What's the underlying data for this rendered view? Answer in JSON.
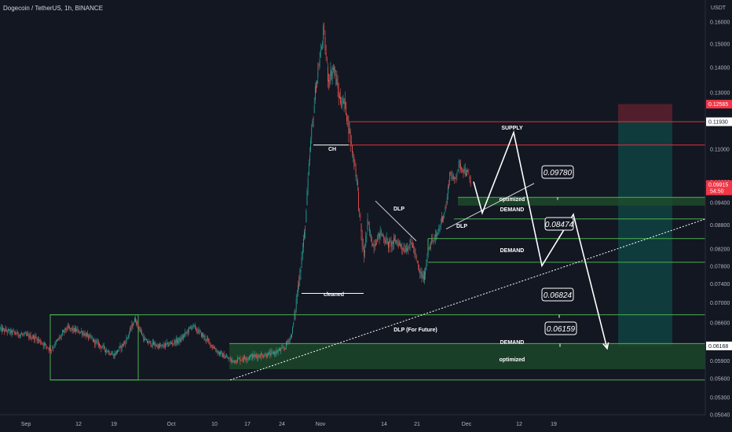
{
  "header": {
    "symbol": "Dogecoin / TetherUS, 1h, BINANCE"
  },
  "colors": {
    "background": "#131722",
    "candle_up": "#26a69a",
    "candle_down": "#ef5350",
    "supply_line": "#e0303a",
    "demand_line": "#4caf50",
    "zone_fill": "#1e4d2b",
    "projection": "#ffffff"
  },
  "chart_data": {
    "type": "candlestick",
    "title": "Dogecoin / TetherUS, 1h, BINANCE",
    "y_axis": {
      "unit": "USDT",
      "scale": "log",
      "range": [
        0.0504,
        0.1625
      ],
      "ticks": [
        "0.16000",
        "0.15000",
        "0.14000",
        "0.13000",
        "0.12000",
        "0.11000",
        "0.10000",
        "0.09400",
        "0.08800",
        "0.08200",
        "0.07800",
        "0.07400",
        "0.07000",
        "0.06600",
        "0.06200",
        "0.05900",
        "0.05600",
        "0.05300",
        "0.05040"
      ]
    },
    "x_axis": {
      "ticks": [
        "Sep",
        "12",
        "19",
        "Oct",
        "10",
        "17",
        "24",
        "Nov",
        "14",
        "21",
        "Dec",
        "12",
        "19"
      ]
    },
    "grid": false,
    "price_labels": [
      {
        "name": "stop-loss",
        "text": "0.12565",
        "value": 0.12565,
        "color": "#f23645"
      },
      {
        "name": "supply-price",
        "text": "0.11930",
        "value": 0.1193,
        "color": "#ffffff"
      },
      {
        "name": "last-price",
        "text": "0.09915",
        "countdown": "54:50",
        "value": 0.09915,
        "color": "#f23645"
      },
      {
        "name": "target",
        "text": "0.06168",
        "value": 0.06168,
        "color": "#ffffff"
      }
    ],
    "horizontal_lines": [
      {
        "name": "supply-upper",
        "value": 0.1193,
        "color": "#e0303a"
      },
      {
        "name": "supply-lower",
        "value": 0.1114,
        "color": "#e0303a"
      },
      {
        "name": "demand-1-upper",
        "value": 0.0955,
        "color": "#4caf50"
      },
      {
        "name": "demand-1-lower",
        "value": 0.0896,
        "color": "#4caf50"
      },
      {
        "name": "demand-2-upper",
        "value": 0.0846,
        "color": "#4caf50"
      },
      {
        "name": "demand-2-lower",
        "value": 0.0789,
        "color": "#4caf50"
      },
      {
        "name": "range-high",
        "value": 0.0676,
        "color": "#4caf50"
      },
      {
        "name": "demand-3-upper",
        "value": 0.0621,
        "color": "#4caf50"
      },
      {
        "name": "range-low",
        "value": 0.0558,
        "color": "#4caf50"
      }
    ],
    "annotations": [
      {
        "name": "supply-label",
        "text": "SUPPLY"
      },
      {
        "name": "ch-label",
        "text": "CH"
      },
      {
        "name": "dlp-label-1",
        "text": "DLP"
      },
      {
        "name": "dlp-label-2",
        "text": "DLP"
      },
      {
        "name": "cleaned-label",
        "text": "cleaned"
      },
      {
        "name": "optimized-label-1",
        "text": "optimized"
      },
      {
        "name": "demand-label-1",
        "text": "DEMAND"
      },
      {
        "name": "demand-label-2",
        "text": "DEMAND"
      },
      {
        "name": "demand-label-3",
        "text": "DEMAND"
      },
      {
        "name": "optimized-label-2",
        "text": "optimized"
      },
      {
        "name": "dlp-future-label",
        "text": "DLP (For Future)"
      }
    ],
    "price_callouts": [
      {
        "name": "callout-0.09780",
        "text": "0.09780",
        "value": 0.0978
      },
      {
        "name": "callout-0.08474",
        "text": "0.08474",
        "value": 0.08474
      },
      {
        "name": "callout-0.06824",
        "text": "0.06824",
        "value": 0.06824
      },
      {
        "name": "callout-0.06159",
        "text": "0.06159",
        "value": 0.06159
      }
    ],
    "short_position": {
      "entry": 0.1193,
      "stop": 0.12565,
      "target": 0.06168
    }
  }
}
